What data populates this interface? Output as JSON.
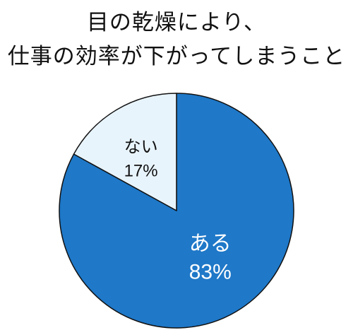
{
  "chart_data": {
    "type": "pie",
    "title_lines": [
      "目の乾燥により、",
      "仕事の効率が下がってしまうこと"
    ],
    "slices": [
      {
        "label": "ある",
        "value": 83,
        "value_label": "83%",
        "color": "#1f78c8",
        "label_color": "#ffffff"
      },
      {
        "label": "ない",
        "value": 17,
        "value_label": "17%",
        "color": "#e8f4fc",
        "label_color": "#111111"
      }
    ],
    "start": "12 o'clock",
    "direction": "clockwise",
    "edge_color": "#111111"
  }
}
